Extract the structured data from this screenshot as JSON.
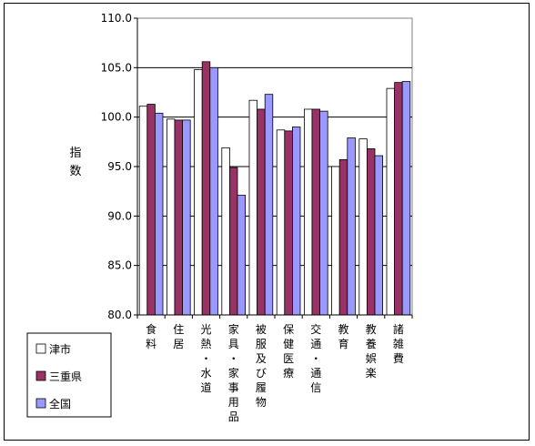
{
  "chart_data": {
    "type": "bar",
    "ylabel": "指数",
    "ylim": [
      80.0,
      110.0
    ],
    "yticks": [
      80.0,
      85.0,
      90.0,
      95.0,
      100.0,
      105.0,
      110.0
    ],
    "ytick_labels": [
      "80.0",
      "85.0",
      "90.0",
      "95.0",
      "100.0",
      "105.0",
      "110.0"
    ],
    "grid": true,
    "legend_position": "bottom-left",
    "categories": [
      "食料",
      "住居",
      "光熱・水道",
      "家具・家事用品",
      "被服及び履物",
      "保健医療",
      "交通・通信",
      "教育",
      "教養娯楽",
      "諸雑費"
    ],
    "series": [
      {
        "name": "津市",
        "color": "#ffffff",
        "values": [
          101.1,
          99.8,
          104.8,
          96.9,
          101.7,
          98.7,
          100.8,
          95.0,
          97.8,
          102.9
        ]
      },
      {
        "name": "三重県",
        "color": "#993366",
        "values": [
          101.3,
          99.7,
          105.6,
          94.9,
          100.8,
          98.6,
          100.8,
          95.7,
          96.8,
          103.5
        ]
      },
      {
        "name": "全国",
        "color": "#9999ff",
        "values": [
          100.4,
          99.7,
          105.0,
          92.1,
          102.3,
          99.0,
          100.6,
          97.9,
          96.1,
          103.6
        ]
      }
    ]
  }
}
